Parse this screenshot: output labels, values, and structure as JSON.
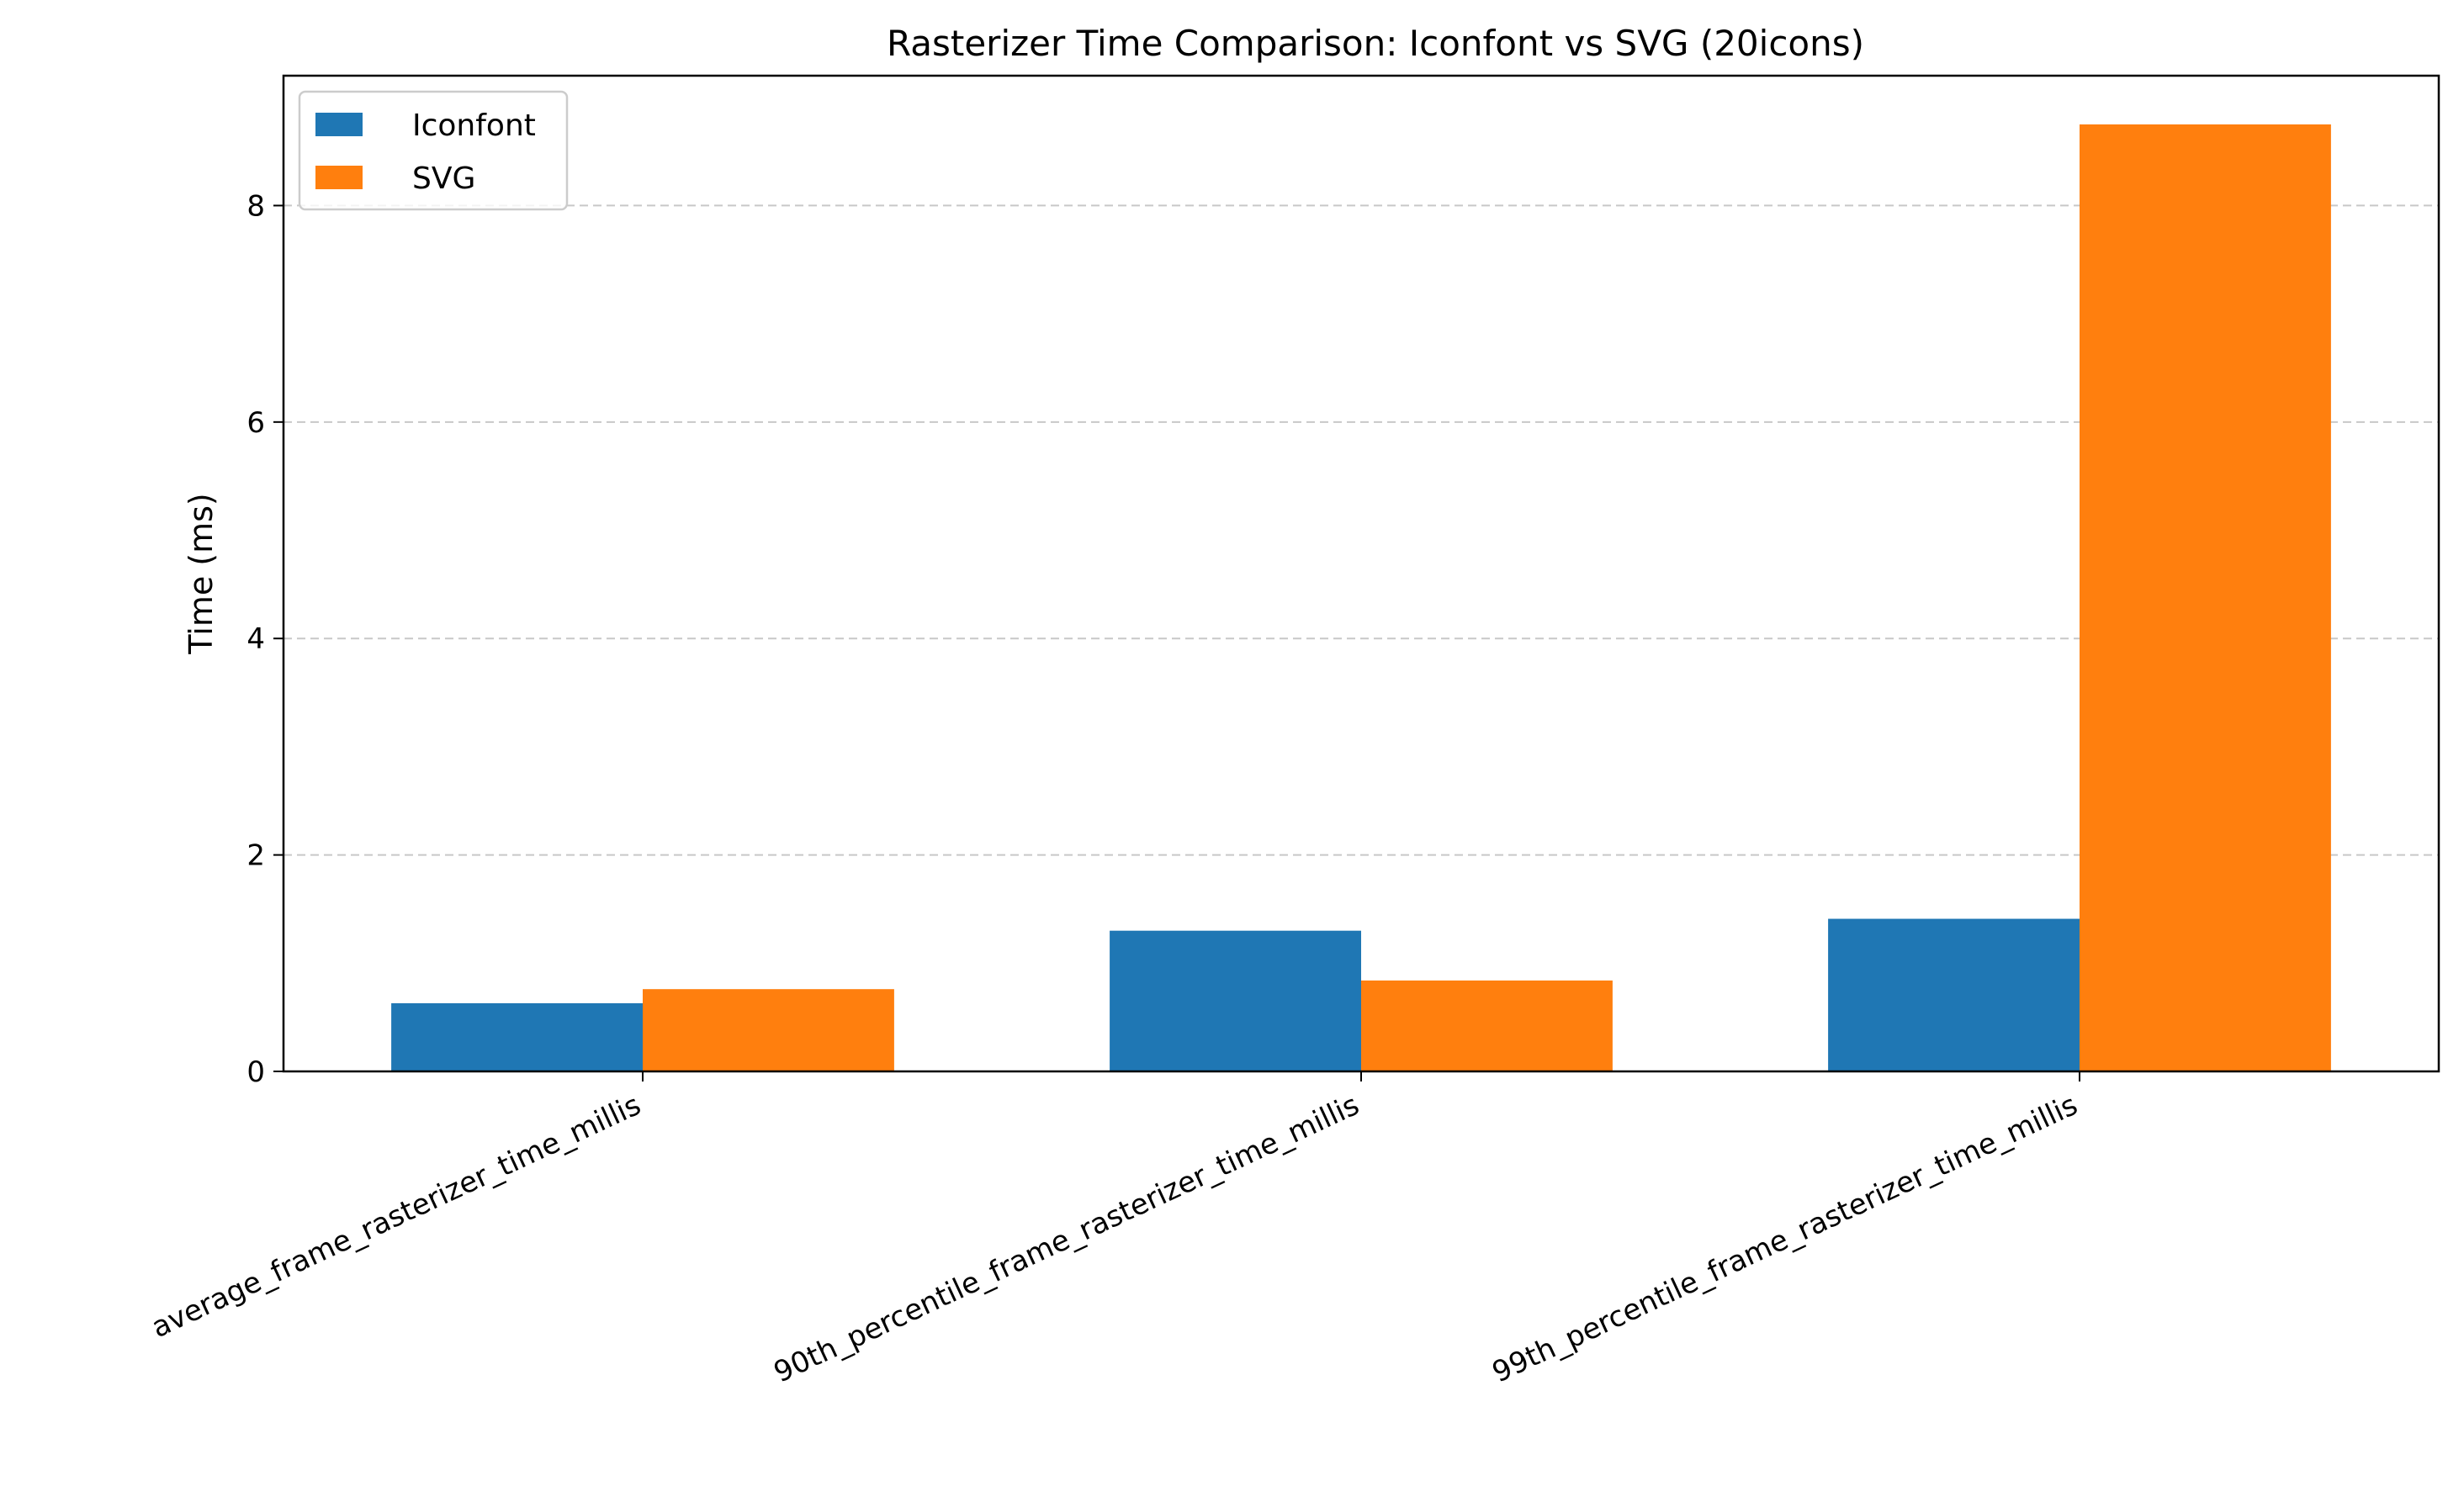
{
  "chart_data": {
    "type": "bar",
    "title": "Rasterizer Time Comparison: Iconfont vs SVG (20icons)",
    "xlabel": "",
    "ylabel": "Time (ms)",
    "categories": [
      "average_frame_rasterizer_time_millis",
      "90th_percentile_frame_rasterizer_time_millis",
      "99th_percentile_frame_rasterizer_time_millis"
    ],
    "series": [
      {
        "name": "Iconfont",
        "color": "#1f77b4",
        "values": [
          0.63,
          1.3,
          1.41
        ]
      },
      {
        "name": "SVG",
        "color": "#ff7f0e",
        "values": [
          0.76,
          0.84,
          8.75
        ]
      }
    ],
    "ylim": [
      0,
      9.2
    ],
    "yticks": [
      0,
      2,
      4,
      6,
      8
    ],
    "y_tick_labels": [
      "0",
      "2",
      "4",
      "6",
      "8"
    ],
    "grid": "y-dashed",
    "legend_position": "top-left"
  }
}
